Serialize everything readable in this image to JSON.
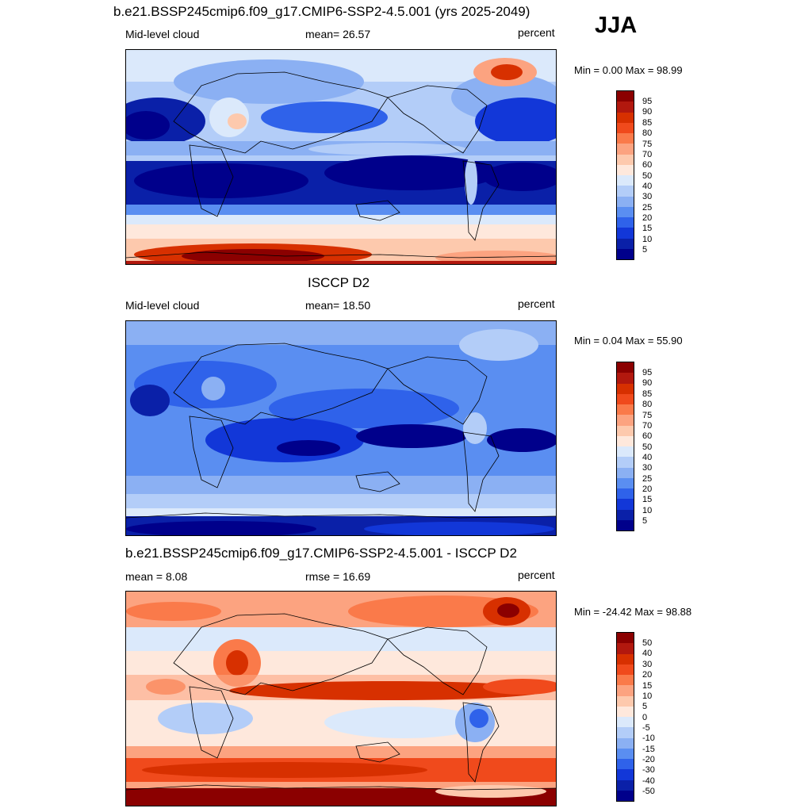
{
  "season": "JJA",
  "panels": [
    {
      "title": "b.e21.BSSP245cmip6.f09_g17.CMIP6-SSP2-4.5.001 (yrs 2025-2049)",
      "left_label": "Mid-level cloud",
      "center_label": "mean=  26.57",
      "right_label": "percent",
      "minmax": "Min =   0.00 Max =  98.99",
      "colorbar_labels": [
        "95",
        "90",
        "85",
        "80",
        "75",
        "70",
        "60",
        "50",
        "40",
        "30",
        "25",
        "20",
        "15",
        "10",
        "5"
      ],
      "colorbar_colors": [
        "#8b0000",
        "#b2180e",
        "#d73000",
        "#f04a1c",
        "#fa7a4a",
        "#fca380",
        "#fdc9ad",
        "#fee8dc",
        "#dbe9fb",
        "#b3cdf8",
        "#8bb0f3",
        "#5a8ef1",
        "#2f62ea",
        "#1237d8",
        "#0a20a8",
        "#00008b"
      ]
    },
    {
      "title": "ISCCP D2",
      "left_label": "Mid-level cloud",
      "center_label": "mean=  18.50",
      "right_label": "percent",
      "minmax": "Min =   0.04 Max =  55.90",
      "colorbar_labels": [
        "95",
        "90",
        "85",
        "80",
        "75",
        "70",
        "60",
        "50",
        "40",
        "30",
        "25",
        "20",
        "15",
        "10",
        "5"
      ],
      "colorbar_colors": [
        "#8b0000",
        "#b2180e",
        "#d73000",
        "#f04a1c",
        "#fa7a4a",
        "#fca380",
        "#fdc9ad",
        "#fee8dc",
        "#dbe9fb",
        "#b3cdf8",
        "#8bb0f3",
        "#5a8ef1",
        "#2f62ea",
        "#1237d8",
        "#0a20a8",
        "#00008b"
      ]
    },
    {
      "title": "b.e21.BSSP245cmip6.f09_g17.CMIP6-SSP2-4.5.001 - ISCCP D2",
      "left_label": "mean =   8.08",
      "center_label": "rmse =  16.69",
      "right_label": "percent",
      "minmax": "Min = -24.42 Max =  98.88",
      "colorbar_labels": [
        "50",
        "40",
        "30",
        "20",
        "15",
        "10",
        "5",
        "0",
        "-5",
        "-10",
        "-15",
        "-20",
        "-30",
        "-40",
        "-50"
      ],
      "colorbar_colors": [
        "#8b0000",
        "#b2180e",
        "#d73000",
        "#f04a1c",
        "#fa7a4a",
        "#fca380",
        "#fdc9ad",
        "#fee8dc",
        "#dbe9fb",
        "#b3cdf8",
        "#8bb0f3",
        "#5a8ef1",
        "#2f62ea",
        "#1237d8",
        "#0a20a8",
        "#00008b"
      ]
    }
  ]
}
